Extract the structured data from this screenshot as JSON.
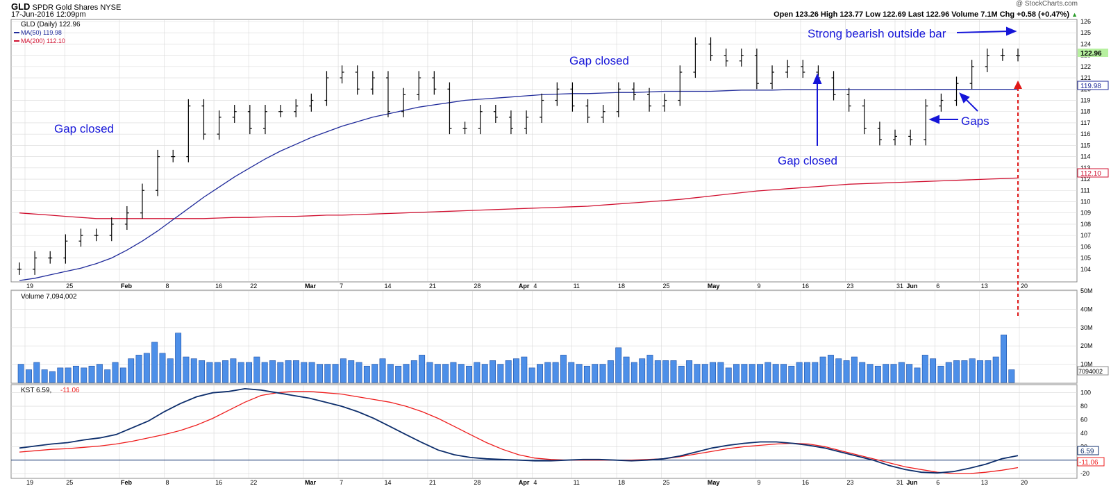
{
  "header": {
    "symbol": "GLD",
    "description": "SPDR Gold Shares",
    "exchange": "NYSE",
    "date": "17-Jun-2016 12:09pm",
    "watermark": "@ StockCharts.com",
    "quote": "Open 123.26  High 123.77  Low 122.69  Last 122.96  Volume 7.1M  Chg +0.58 (+0.47%)",
    "chg_arrow": "▲"
  },
  "colors": {
    "price_bar": "#000000",
    "ma50": "#1f2a9a",
    "ma200": "#d01030",
    "volume_bar": "#4d8fe8",
    "kst": "#0c2d6b",
    "kst_signal": "#ee1c1c",
    "annotation": "#1515d8",
    "grid": "#d8d8d8",
    "last_price_tag": "#b7f0a0"
  },
  "price_panel": {
    "legend_title": "GLD (Daily) 122.96",
    "legend_ma50": "MA(50) 119.98",
    "legend_ma200": "MA(200) 112.10",
    "last_tag": "122.96",
    "ma50_tag": "119.98",
    "ma200_tag": "112.10"
  },
  "volume_panel": {
    "legend": "Volume 7,094,002",
    "last_tag": "7094002"
  },
  "kst_panel": {
    "legend_kst": "KST 6.59,",
    "legend_signal": "-11.06",
    "kst_tag": "6.59",
    "signal_tag": "-11.06"
  },
  "annotations": {
    "gap_closed_1": "Gap closed",
    "gap_closed_2": "Gap closed",
    "gap_closed_3": "Gap closed",
    "outside_bar": "Strong bearish outside bar",
    "gaps": "Gaps"
  },
  "chart_data": [
    {
      "type": "ohlc",
      "title": "GLD (Daily) 122.96",
      "x": [
        "2016-01-18",
        "2016-01-20",
        "2016-01-22",
        "2016-01-25",
        "2016-01-27",
        "2016-01-29",
        "2016-02-01",
        "2016-02-03",
        "2016-02-05",
        "2016-02-08",
        "2016-02-10",
        "2016-02-12",
        "2016-02-15",
        "2016-02-17",
        "2016-02-19",
        "2016-02-22",
        "2016-02-24",
        "2016-02-26",
        "2016-02-29",
        "2016-03-02",
        "2016-03-04",
        "2016-03-07",
        "2016-03-09",
        "2016-03-11",
        "2016-03-14",
        "2016-03-16",
        "2016-03-18",
        "2016-03-21",
        "2016-03-23",
        "2016-03-25",
        "2016-03-28",
        "2016-03-30",
        "2016-04-01",
        "2016-04-04",
        "2016-04-06",
        "2016-04-08",
        "2016-04-11",
        "2016-04-13",
        "2016-04-15",
        "2016-04-18",
        "2016-04-20",
        "2016-04-22",
        "2016-04-25",
        "2016-04-27",
        "2016-04-29",
        "2016-05-02",
        "2016-05-04",
        "2016-05-06",
        "2016-05-09",
        "2016-05-11",
        "2016-05-13",
        "2016-05-16",
        "2016-05-18",
        "2016-05-20",
        "2016-05-23",
        "2016-05-25",
        "2016-05-27",
        "2016-05-30",
        "2016-06-01",
        "2016-06-03",
        "2016-06-06",
        "2016-06-08",
        "2016-06-10",
        "2016-06-13",
        "2016-06-15",
        "2016-06-17"
      ],
      "close": [
        104.0,
        105.0,
        105.0,
        106.5,
        107.0,
        107.0,
        108.0,
        109.0,
        111.0,
        114.0,
        114.0,
        118.5,
        116.0,
        117.5,
        118.0,
        116.5,
        118.0,
        118.0,
        118.5,
        119.0,
        121.0,
        121.5,
        120.0,
        121.0,
        118.0,
        119.5,
        121.0,
        120.0,
        116.5,
        116.5,
        118.0,
        117.5,
        116.5,
        117.5,
        119.0,
        120.0,
        118.5,
        117.5,
        118.0,
        120.0,
        119.5,
        118.5,
        119.0,
        121.5,
        124.0,
        123.0,
        122.5,
        123.0,
        120.5,
        121.5,
        122.0,
        121.5,
        121.0,
        119.5,
        118.5,
        116.5,
        115.5,
        115.8,
        115.5,
        118.5,
        119.0,
        120.5,
        122.0,
        123.0,
        123.0,
        122.96
      ],
      "ma50": [
        103.0,
        103.2,
        103.5,
        103.8,
        104.1,
        104.5,
        105.0,
        105.7,
        106.5,
        107.4,
        108.4,
        109.4,
        110.4,
        111.3,
        112.2,
        113.0,
        113.8,
        114.5,
        115.1,
        115.7,
        116.2,
        116.7,
        117.1,
        117.5,
        117.8,
        118.1,
        118.4,
        118.6,
        118.8,
        119.0,
        119.1,
        119.2,
        119.3,
        119.4,
        119.5,
        119.55,
        119.6,
        119.6,
        119.65,
        119.7,
        119.7,
        119.75,
        119.8,
        119.8,
        119.8,
        119.8,
        119.85,
        119.9,
        119.9,
        119.9,
        119.95,
        119.95,
        119.95,
        119.95,
        119.96,
        119.96,
        119.96,
        119.96,
        119.96,
        119.97,
        119.97,
        119.97,
        119.98,
        119.98,
        119.98,
        119.98
      ],
      "ma200": [
        109.0,
        108.9,
        108.8,
        108.7,
        108.6,
        108.5,
        108.5,
        108.5,
        108.5,
        108.5,
        108.5,
        108.5,
        108.5,
        108.55,
        108.6,
        108.6,
        108.65,
        108.7,
        108.7,
        108.75,
        108.8,
        108.8,
        108.85,
        108.9,
        108.95,
        109.0,
        109.05,
        109.1,
        109.15,
        109.2,
        109.25,
        109.3,
        109.35,
        109.4,
        109.45,
        109.5,
        109.55,
        109.6,
        109.7,
        109.8,
        109.9,
        110.0,
        110.1,
        110.2,
        110.35,
        110.5,
        110.65,
        110.8,
        110.95,
        111.05,
        111.15,
        111.25,
        111.35,
        111.45,
        111.55,
        111.6,
        111.65,
        111.7,
        111.75,
        111.8,
        111.85,
        111.9,
        111.95,
        112.0,
        112.05,
        112.1
      ],
      "ylim": [
        103,
        126
      ]
    },
    {
      "type": "bar",
      "title": "Volume 7,094,002",
      "values": [
        10,
        7,
        11,
        7,
        6,
        8,
        8,
        9,
        8,
        9,
        10,
        7,
        11,
        8,
        13,
        15,
        16,
        22,
        16,
        13,
        27,
        14,
        13,
        12,
        11,
        11,
        12,
        13,
        11,
        11,
        14,
        11,
        12,
        11,
        12,
        12,
        11,
        11,
        10,
        10,
        10,
        13,
        12,
        11,
        9,
        10,
        13,
        10,
        9,
        10,
        12,
        15,
        11,
        10,
        10,
        11,
        10,
        9,
        11,
        10,
        12,
        10,
        12,
        13,
        14,
        8,
        10,
        11,
        11,
        15,
        11,
        10,
        9,
        10,
        10,
        12,
        19,
        14,
        11,
        13,
        15,
        12,
        12,
        12,
        9,
        12,
        10,
        10,
        11,
        11,
        8,
        10,
        10,
        10,
        10,
        11,
        10,
        10,
        9,
        11,
        11,
        11,
        14,
        15,
        13,
        12,
        14,
        11,
        10,
        9,
        10,
        10,
        11,
        10,
        8,
        15,
        13,
        9,
        11,
        12,
        12,
        13,
        12,
        12,
        14,
        26,
        7
      ],
      "ylim": [
        0,
        50
      ],
      "unit": "M"
    },
    {
      "type": "line",
      "title": "KST 6.59, -11.06",
      "series": [
        {
          "name": "KST",
          "values": [
            18,
            21,
            24,
            26,
            30,
            33,
            38,
            48,
            58,
            72,
            84,
            94,
            100,
            102,
            106,
            104,
            100,
            96,
            92,
            86,
            80,
            72,
            62,
            50,
            38,
            26,
            15,
            8,
            4,
            2,
            1,
            0,
            -1,
            -1,
            0,
            1,
            1,
            0,
            -1,
            0,
            2,
            6,
            12,
            18,
            22,
            25,
            27,
            27,
            25,
            22,
            18,
            12,
            6,
            0,
            -8,
            -14,
            -18,
            -19,
            -17,
            -12,
            -6,
            2,
            6.59
          ]
        },
        {
          "name": "-11.06",
          "values": [
            12,
            14,
            16,
            17,
            19,
            21,
            24,
            28,
            33,
            38,
            44,
            52,
            62,
            74,
            86,
            96,
            100,
            102,
            102,
            100,
            98,
            94,
            90,
            86,
            80,
            72,
            62,
            50,
            38,
            26,
            16,
            8,
            3,
            1,
            0,
            0,
            0,
            0,
            0,
            1,
            2,
            5,
            9,
            13,
            17,
            20,
            22,
            24,
            25,
            24,
            20,
            14,
            8,
            2,
            -4,
            -10,
            -14,
            -18,
            -20,
            -20,
            -18,
            -15,
            -11.06
          ]
        }
      ],
      "ylim": [
        -25,
        110
      ]
    }
  ]
}
